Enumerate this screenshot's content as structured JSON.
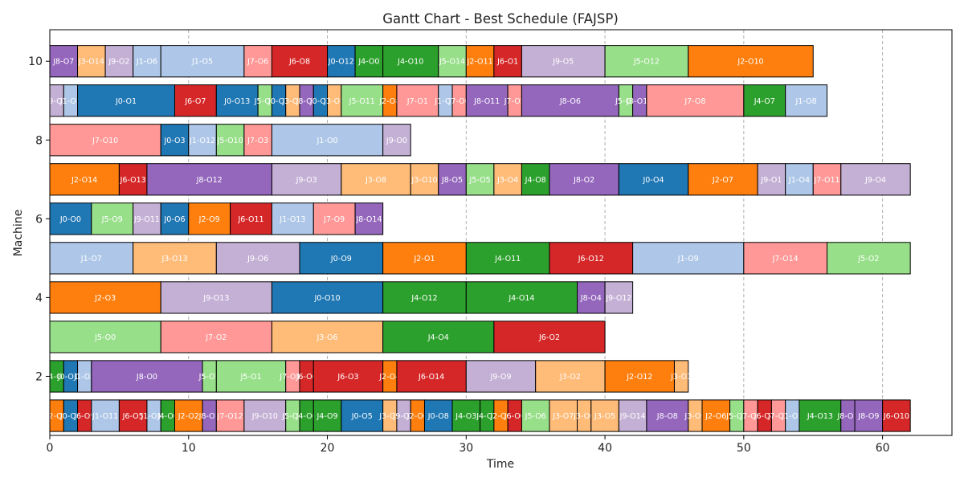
{
  "chart_data": {
    "type": "gantt",
    "title": "Gantt Chart - Best Schedule (FAJSP)",
    "xlabel": "Time",
    "ylabel": "Machine",
    "xlim": [
      0,
      65
    ],
    "ylim": [
      0.5,
      10.8
    ],
    "x_ticks": [
      0,
      10,
      20,
      30,
      40,
      50,
      60
    ],
    "y_ticks": [
      2,
      4,
      6,
      8,
      10
    ],
    "grid": "vertical dashed at x ticks",
    "job_colors": {
      "J0": "#1f77b4",
      "J1": "#aec7e8",
      "J2": "#ff7f0e",
      "J3": "#ffbb78",
      "J4": "#2ca02c",
      "J5": "#98df8a",
      "J6": "#d62728",
      "J7": "#ff9896",
      "J8": "#9467bd",
      "J9": "#c5b0d5"
    },
    "tasks": [
      {
        "machine": 10,
        "job": "J8",
        "label": "J8-O7",
        "start": 0,
        "end": 2
      },
      {
        "machine": 10,
        "job": "J3",
        "label": "J3-O14",
        "start": 2,
        "end": 4
      },
      {
        "machine": 10,
        "job": "J9",
        "label": "J9-O2",
        "start": 4,
        "end": 6
      },
      {
        "machine": 10,
        "job": "J1",
        "label": "J1-O6",
        "start": 6,
        "end": 8
      },
      {
        "machine": 10,
        "job": "J1",
        "label": "J1-O5",
        "start": 8,
        "end": 14
      },
      {
        "machine": 10,
        "job": "J7",
        "label": "J7-O6",
        "start": 14,
        "end": 16
      },
      {
        "machine": 10,
        "job": "J6",
        "label": "J6-O8",
        "start": 16,
        "end": 20
      },
      {
        "machine": 10,
        "job": "J0",
        "label": "J0-O12",
        "start": 20,
        "end": 22
      },
      {
        "machine": 10,
        "job": "J4",
        "label": "J4-O0",
        "start": 22,
        "end": 24
      },
      {
        "machine": 10,
        "job": "J4",
        "label": "J4-O10",
        "start": 24,
        "end": 28
      },
      {
        "machine": 10,
        "job": "J5",
        "label": "J5-O14",
        "start": 28,
        "end": 30
      },
      {
        "machine": 10,
        "job": "J2",
        "label": "J2-O11",
        "start": 30,
        "end": 32
      },
      {
        "machine": 10,
        "job": "J6",
        "label": "J6-O1",
        "start": 32,
        "end": 34
      },
      {
        "machine": 10,
        "job": "J9",
        "label": "J9-O5",
        "start": 34,
        "end": 40
      },
      {
        "machine": 10,
        "job": "J5",
        "label": "J5-O12",
        "start": 40,
        "end": 46
      },
      {
        "machine": 10,
        "job": "J2",
        "label": "J2-O10",
        "start": 46,
        "end": 55
      },
      {
        "machine": 9,
        "job": "J9",
        "label": "J9-O8",
        "start": 0,
        "end": 1
      },
      {
        "machine": 9,
        "job": "J1",
        "label": "J1-O1",
        "start": 1,
        "end": 2
      },
      {
        "machine": 9,
        "job": "J0",
        "label": "J0-O1",
        "start": 2,
        "end": 9
      },
      {
        "machine": 9,
        "job": "J6",
        "label": "J6-O7",
        "start": 9,
        "end": 12
      },
      {
        "machine": 9,
        "job": "J0",
        "label": "J0-O13",
        "start": 12,
        "end": 15
      },
      {
        "machine": 9,
        "job": "J5",
        "label": "J5-O6",
        "start": 15,
        "end": 16
      },
      {
        "machine": 9,
        "job": "J0",
        "label": "J0-O2",
        "start": 16,
        "end": 17
      },
      {
        "machine": 9,
        "job": "J3",
        "label": "J3-O2",
        "start": 17,
        "end": 18
      },
      {
        "machine": 9,
        "job": "J8",
        "label": "J8-O3",
        "start": 18,
        "end": 19
      },
      {
        "machine": 9,
        "job": "J0",
        "label": "J0-O3",
        "start": 19,
        "end": 20
      },
      {
        "machine": 9,
        "job": "J3",
        "label": "J3-O1",
        "start": 20,
        "end": 21
      },
      {
        "machine": 9,
        "job": "J5",
        "label": "J5-O11",
        "start": 21,
        "end": 24
      },
      {
        "machine": 9,
        "job": "J2",
        "label": "J2-O8",
        "start": 24,
        "end": 25
      },
      {
        "machine": 9,
        "job": "J7",
        "label": "J7-O1",
        "start": 25,
        "end": 28
      },
      {
        "machine": 9,
        "job": "J1",
        "label": "J1-O7",
        "start": 28,
        "end": 29
      },
      {
        "machine": 9,
        "job": "J7",
        "label": "J7-O0",
        "start": 29,
        "end": 30
      },
      {
        "machine": 9,
        "job": "J8",
        "label": "J8-O11",
        "start": 30,
        "end": 33
      },
      {
        "machine": 9,
        "job": "J7",
        "label": "J7-O5",
        "start": 33,
        "end": 34
      },
      {
        "machine": 9,
        "job": "J8",
        "label": "J8-O6",
        "start": 34,
        "end": 41
      },
      {
        "machine": 9,
        "job": "J5",
        "label": "J5-O8",
        "start": 41,
        "end": 42
      },
      {
        "machine": 9,
        "job": "J8",
        "label": "J8-O10",
        "start": 42,
        "end": 43
      },
      {
        "machine": 9,
        "job": "J7",
        "label": "J7-O8",
        "start": 43,
        "end": 50
      },
      {
        "machine": 9,
        "job": "J4",
        "label": "J4-O7",
        "start": 50,
        "end": 53
      },
      {
        "machine": 9,
        "job": "J1",
        "label": "J1-O8",
        "start": 53,
        "end": 56
      },
      {
        "machine": 8,
        "job": "J7",
        "label": "J7-O10",
        "start": 0,
        "end": 8
      },
      {
        "machine": 8,
        "job": "J0",
        "label": "J0-O3",
        "start": 8,
        "end": 10
      },
      {
        "machine": 8,
        "job": "J1",
        "label": "J1-O12",
        "start": 10,
        "end": 12
      },
      {
        "machine": 8,
        "job": "J5",
        "label": "J5-O10",
        "start": 12,
        "end": 14
      },
      {
        "machine": 8,
        "job": "J7",
        "label": "J7-O3",
        "start": 14,
        "end": 16
      },
      {
        "machine": 8,
        "job": "J1",
        "label": "J1-O0",
        "start": 16,
        "end": 24
      },
      {
        "machine": 8,
        "job": "J9",
        "label": "J9-O0",
        "start": 24,
        "end": 26
      },
      {
        "machine": 7,
        "job": "J2",
        "label": "J2-O14",
        "start": 0,
        "end": 5
      },
      {
        "machine": 7,
        "job": "J6",
        "label": "J6-O13",
        "start": 5,
        "end": 7
      },
      {
        "machine": 7,
        "job": "J8",
        "label": "J8-O12",
        "start": 7,
        "end": 16
      },
      {
        "machine": 7,
        "job": "J9",
        "label": "J9-O3",
        "start": 16,
        "end": 21
      },
      {
        "machine": 7,
        "job": "J3",
        "label": "J3-O8",
        "start": 21,
        "end": 26
      },
      {
        "machine": 7,
        "job": "J3",
        "label": "J3-O10",
        "start": 26,
        "end": 28
      },
      {
        "machine": 7,
        "job": "J8",
        "label": "J8-O5",
        "start": 28,
        "end": 30
      },
      {
        "machine": 7,
        "job": "J5",
        "label": "J5-O5",
        "start": 30,
        "end": 32
      },
      {
        "machine": 7,
        "job": "J3",
        "label": "J3-O4",
        "start": 32,
        "end": 34
      },
      {
        "machine": 7,
        "job": "J4",
        "label": "J4-O8",
        "start": 34,
        "end": 36
      },
      {
        "machine": 7,
        "job": "J8",
        "label": "J8-O2",
        "start": 36,
        "end": 41
      },
      {
        "machine": 7,
        "job": "J0",
        "label": "J0-O4",
        "start": 41,
        "end": 46
      },
      {
        "machine": 7,
        "job": "J2",
        "label": "J2-O7",
        "start": 46,
        "end": 51
      },
      {
        "machine": 7,
        "job": "J9",
        "label": "J9-O1",
        "start": 51,
        "end": 53
      },
      {
        "machine": 7,
        "job": "J1",
        "label": "J1-O4",
        "start": 53,
        "end": 55
      },
      {
        "machine": 7,
        "job": "J7",
        "label": "J7-O11",
        "start": 55,
        "end": 57
      },
      {
        "machine": 7,
        "job": "J9",
        "label": "J9-O4",
        "start": 57,
        "end": 62
      },
      {
        "machine": 6,
        "job": "J0",
        "label": "J0-O0",
        "start": 0,
        "end": 3
      },
      {
        "machine": 6,
        "job": "J5",
        "label": "J5-O9",
        "start": 3,
        "end": 6
      },
      {
        "machine": 6,
        "job": "J9",
        "label": "J9-O11",
        "start": 6,
        "end": 8
      },
      {
        "machine": 6,
        "job": "J0",
        "label": "J0-O6",
        "start": 8,
        "end": 10
      },
      {
        "machine": 6,
        "job": "J2",
        "label": "J2-O9",
        "start": 10,
        "end": 13
      },
      {
        "machine": 6,
        "job": "J6",
        "label": "J6-O11",
        "start": 13,
        "end": 16
      },
      {
        "machine": 6,
        "job": "J1",
        "label": "J1-O13",
        "start": 16,
        "end": 19
      },
      {
        "machine": 6,
        "job": "J7",
        "label": "J7-O9",
        "start": 19,
        "end": 22
      },
      {
        "machine": 6,
        "job": "J8",
        "label": "J8-O14",
        "start": 22,
        "end": 24
      },
      {
        "machine": 5,
        "job": "J1",
        "label": "J1-O7",
        "start": 0,
        "end": 6
      },
      {
        "machine": 5,
        "job": "J3",
        "label": "J3-O13",
        "start": 6,
        "end": 12
      },
      {
        "machine": 5,
        "job": "J9",
        "label": "J9-O6",
        "start": 12,
        "end": 18
      },
      {
        "machine": 5,
        "job": "J0",
        "label": "J0-O9",
        "start": 18,
        "end": 24
      },
      {
        "machine": 5,
        "job": "J2",
        "label": "J2-O1",
        "start": 24,
        "end": 30
      },
      {
        "machine": 5,
        "job": "J4",
        "label": "J4-O11",
        "start": 30,
        "end": 36
      },
      {
        "machine": 5,
        "job": "J6",
        "label": "J6-O12",
        "start": 36,
        "end": 42
      },
      {
        "machine": 5,
        "job": "J1",
        "label": "J1-O9",
        "start": 42,
        "end": 50
      },
      {
        "machine": 5,
        "job": "J7",
        "label": "J7-O14",
        "start": 50,
        "end": 56
      },
      {
        "machine": 5,
        "job": "J5",
        "label": "J5-O2",
        "start": 56,
        "end": 62
      },
      {
        "machine": 4,
        "job": "J2",
        "label": "J2-O3",
        "start": 0,
        "end": 8
      },
      {
        "machine": 4,
        "job": "J9",
        "label": "J9-O13",
        "start": 8,
        "end": 16
      },
      {
        "machine": 4,
        "job": "J0",
        "label": "J0-O10",
        "start": 16,
        "end": 24
      },
      {
        "machine": 4,
        "job": "J4",
        "label": "J4-O12",
        "start": 24,
        "end": 30
      },
      {
        "machine": 4,
        "job": "J4",
        "label": "J4-O14",
        "start": 30,
        "end": 38
      },
      {
        "machine": 4,
        "job": "J8",
        "label": "J8-O4",
        "start": 38,
        "end": 40
      },
      {
        "machine": 4,
        "job": "J9",
        "label": "J9-O12",
        "start": 40,
        "end": 42
      },
      {
        "machine": 3,
        "job": "J5",
        "label": "J5-O0",
        "start": 0,
        "end": 8
      },
      {
        "machine": 3,
        "job": "J7",
        "label": "J7-O2",
        "start": 8,
        "end": 16
      },
      {
        "machine": 3,
        "job": "J3",
        "label": "J3-O6",
        "start": 16,
        "end": 24
      },
      {
        "machine": 3,
        "job": "J4",
        "label": "J4-O4",
        "start": 24,
        "end": 32
      },
      {
        "machine": 3,
        "job": "J6",
        "label": "J6-O2",
        "start": 32,
        "end": 40
      },
      {
        "machine": 2,
        "job": "J4",
        "label": "J4-O1",
        "start": 0,
        "end": 1
      },
      {
        "machine": 2,
        "job": "J0",
        "label": "J0-O11",
        "start": 1,
        "end": 2
      },
      {
        "machine": 2,
        "job": "J1",
        "label": "J1-O3",
        "start": 2,
        "end": 3
      },
      {
        "machine": 2,
        "job": "J8",
        "label": "J8-O0",
        "start": 3,
        "end": 11
      },
      {
        "machine": 2,
        "job": "J5",
        "label": "J5-O7",
        "start": 11,
        "end": 12
      },
      {
        "machine": 2,
        "job": "J5",
        "label": "J5-O1",
        "start": 12,
        "end": 17
      },
      {
        "machine": 2,
        "job": "J7",
        "label": "J7-O13",
        "start": 17,
        "end": 18
      },
      {
        "machine": 2,
        "job": "J6",
        "label": "J6-O6",
        "start": 18,
        "end": 19
      },
      {
        "machine": 2,
        "job": "J6",
        "label": "J6-O3",
        "start": 19,
        "end": 24
      },
      {
        "machine": 2,
        "job": "J2",
        "label": "J2-O4",
        "start": 24,
        "end": 25
      },
      {
        "machine": 2,
        "job": "J6",
        "label": "J6-O14",
        "start": 25,
        "end": 30
      },
      {
        "machine": 2,
        "job": "J9",
        "label": "J9-O9",
        "start": 30,
        "end": 35
      },
      {
        "machine": 2,
        "job": "J3",
        "label": "J3-O2",
        "start": 35,
        "end": 40
      },
      {
        "machine": 2,
        "job": "J2",
        "label": "J2-O12",
        "start": 40,
        "end": 45
      },
      {
        "machine": 2,
        "job": "J3",
        "label": "J3-O3",
        "start": 45,
        "end": 46
      },
      {
        "machine": 1,
        "job": "J2",
        "label": "J2-O5",
        "start": 0,
        "end": 1
      },
      {
        "machine": 1,
        "job": "J0",
        "label": "J0-O8",
        "start": 1,
        "end": 2
      },
      {
        "machine": 1,
        "job": "J6",
        "label": "J6-O9",
        "start": 2,
        "end": 3
      },
      {
        "machine": 1,
        "job": "J1",
        "label": "J1-O11",
        "start": 3,
        "end": 5
      },
      {
        "machine": 1,
        "job": "J6",
        "label": "J6-O5",
        "start": 5,
        "end": 7
      },
      {
        "machine": 1,
        "job": "J1",
        "label": "J1-O10",
        "start": 7,
        "end": 8
      },
      {
        "machine": 1,
        "job": "J4",
        "label": "J4-O0",
        "start": 8,
        "end": 9
      },
      {
        "machine": 1,
        "job": "J2",
        "label": "J2-O2",
        "start": 9,
        "end": 11
      },
      {
        "machine": 1,
        "job": "J8",
        "label": "J8-O1",
        "start": 11,
        "end": 12
      },
      {
        "machine": 1,
        "job": "J7",
        "label": "J7-O12",
        "start": 12,
        "end": 14
      },
      {
        "machine": 1,
        "job": "J9",
        "label": "J9-O10",
        "start": 14,
        "end": 17
      },
      {
        "machine": 1,
        "job": "J5",
        "label": "J5-O4",
        "start": 17,
        "end": 18
      },
      {
        "machine": 1,
        "job": "J4",
        "label": "J4-O6",
        "start": 18,
        "end": 19
      },
      {
        "machine": 1,
        "job": "J4",
        "label": "J4-O9",
        "start": 19,
        "end": 21
      },
      {
        "machine": 1,
        "job": "J0",
        "label": "J0-O5",
        "start": 21,
        "end": 24
      },
      {
        "machine": 1,
        "job": "J3",
        "label": "J3-O9",
        "start": 24,
        "end": 25
      },
      {
        "machine": 1,
        "job": "J9",
        "label": "J9-O7",
        "start": 25,
        "end": 26
      },
      {
        "machine": 1,
        "job": "J2",
        "label": "J2-O0",
        "start": 26,
        "end": 27
      },
      {
        "machine": 1,
        "job": "J0",
        "label": "J0-O8",
        "start": 27,
        "end": 29
      },
      {
        "machine": 1,
        "job": "J4",
        "label": "J4-O3",
        "start": 29,
        "end": 31
      },
      {
        "machine": 1,
        "job": "J4",
        "label": "J4-O2",
        "start": 31,
        "end": 32
      },
      {
        "machine": 1,
        "job": "J2",
        "label": "J2-O6",
        "start": 32,
        "end": 33
      },
      {
        "machine": 1,
        "job": "J6",
        "label": "J6-O0",
        "start": 33,
        "end": 34
      },
      {
        "machine": 1,
        "job": "J5",
        "label": "J5-O6",
        "start": 34,
        "end": 36
      },
      {
        "machine": 1,
        "job": "J3",
        "label": "J3-O7",
        "start": 36,
        "end": 38
      },
      {
        "machine": 1,
        "job": "J3",
        "label": "J3-O0",
        "start": 38,
        "end": 39
      },
      {
        "machine": 1,
        "job": "J3",
        "label": "J3-O5",
        "start": 39,
        "end": 41
      },
      {
        "machine": 1,
        "job": "J9",
        "label": "J9-O14",
        "start": 41,
        "end": 43
      },
      {
        "machine": 1,
        "job": "J8",
        "label": "J8-O8",
        "start": 43,
        "end": 46
      },
      {
        "machine": 1,
        "job": "J3",
        "label": "J3-O9",
        "start": 46,
        "end": 47
      },
      {
        "machine": 1,
        "job": "J2",
        "label": "J2-O6",
        "start": 47,
        "end": 49
      },
      {
        "machine": 1,
        "job": "J5",
        "label": "J5-O3",
        "start": 49,
        "end": 50
      },
      {
        "machine": 1,
        "job": "J7",
        "label": "J7-O4",
        "start": 50,
        "end": 51
      },
      {
        "machine": 1,
        "job": "J6",
        "label": "J6-O4",
        "start": 51,
        "end": 52
      },
      {
        "machine": 1,
        "job": "J7",
        "label": "J7-O7",
        "start": 52,
        "end": 53
      },
      {
        "machine": 1,
        "job": "J1",
        "label": "J1-O2",
        "start": 53,
        "end": 54
      },
      {
        "machine": 1,
        "job": "J4",
        "label": "J4-O13",
        "start": 54,
        "end": 57
      },
      {
        "machine": 1,
        "job": "J8",
        "label": "J8-O1",
        "start": 57,
        "end": 58
      },
      {
        "machine": 1,
        "job": "J8",
        "label": "J8-O9",
        "start": 58,
        "end": 60
      },
      {
        "machine": 1,
        "job": "J6",
        "label": "J6-O10",
        "start": 60,
        "end": 62
      }
    ]
  }
}
